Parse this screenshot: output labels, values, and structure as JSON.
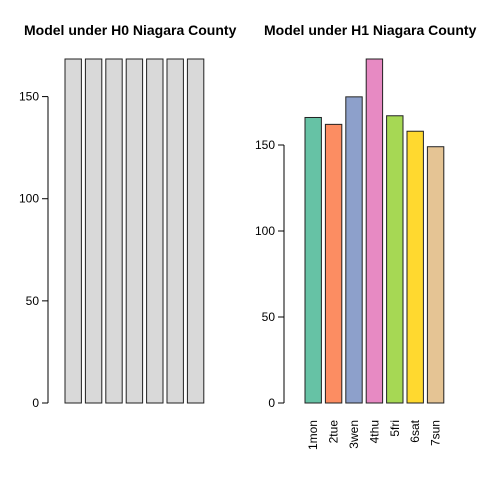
{
  "chart_data": [
    {
      "type": "bar",
      "title": "Model under H0 Niagara County",
      "categories": [
        "1mon",
        "2tue",
        "3wen",
        "4thu",
        "5fri",
        "6sat",
        "7sun"
      ],
      "show_category_labels": false,
      "values": [
        168.4,
        168.4,
        168.4,
        168.4,
        168.4,
        168.4,
        168.4
      ],
      "colors": [
        "#d9d9d9",
        "#d9d9d9",
        "#d9d9d9",
        "#d9d9d9",
        "#d9d9d9",
        "#d9d9d9",
        "#d9d9d9"
      ],
      "ylim": [
        0,
        168.4
      ],
      "yticks": [
        0,
        50,
        100,
        150
      ],
      "xlabel": "",
      "ylabel": "",
      "grid": false
    },
    {
      "type": "bar",
      "title": "Model under H1 Niagara County",
      "categories": [
        "1mon",
        "2tue",
        "3wen",
        "4thu",
        "5fri",
        "6sat",
        "7sun"
      ],
      "show_category_labels": true,
      "values": [
        166,
        162,
        178,
        200,
        167,
        158,
        149
      ],
      "colors": [
        "#66c2a5",
        "#fc8d62",
        "#8da0cb",
        "#e78ac3",
        "#a6d854",
        "#ffd92f",
        "#e5c494"
      ],
      "ylim": [
        0,
        200
      ],
      "yticks": [
        0,
        50,
        100,
        150
      ],
      "xlabel": "",
      "ylabel": "",
      "grid": false
    }
  ]
}
